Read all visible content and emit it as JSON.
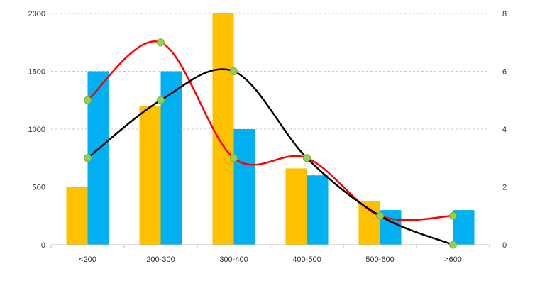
{
  "chart_data": {
    "type": "bar",
    "categories": [
      "<200",
      "200-300",
      "300-400",
      "400-500",
      "500-600",
      ">600"
    ],
    "y_left": {
      "ylim": [
        0,
        2000
      ],
      "ticks": [
        "0",
        "500",
        "1000",
        "1500",
        "2000"
      ]
    },
    "y_right": {
      "ylim": [
        0,
        8
      ],
      "ticks": [
        "0",
        "2",
        "4",
        "6",
        "8"
      ]
    },
    "grid": true,
    "series": [
      {
        "type": "bar",
        "axis": "left",
        "color": "#FFC000",
        "values": [
          500,
          1200,
          2000,
          660,
          380,
          0
        ]
      },
      {
        "type": "bar",
        "axis": "left",
        "color": "#00B0F0",
        "values": [
          1500,
          1500,
          1000,
          600,
          300,
          300
        ]
      },
      {
        "type": "line",
        "axis": "right",
        "color": "#FF0000",
        "smooth": true,
        "values": [
          5,
          7,
          3,
          3,
          1,
          1
        ]
      },
      {
        "type": "line",
        "axis": "right",
        "color": "#000000",
        "smooth": true,
        "values": [
          3,
          5,
          6,
          3,
          1,
          0
        ]
      }
    ],
    "marker_color": "#92D050"
  }
}
